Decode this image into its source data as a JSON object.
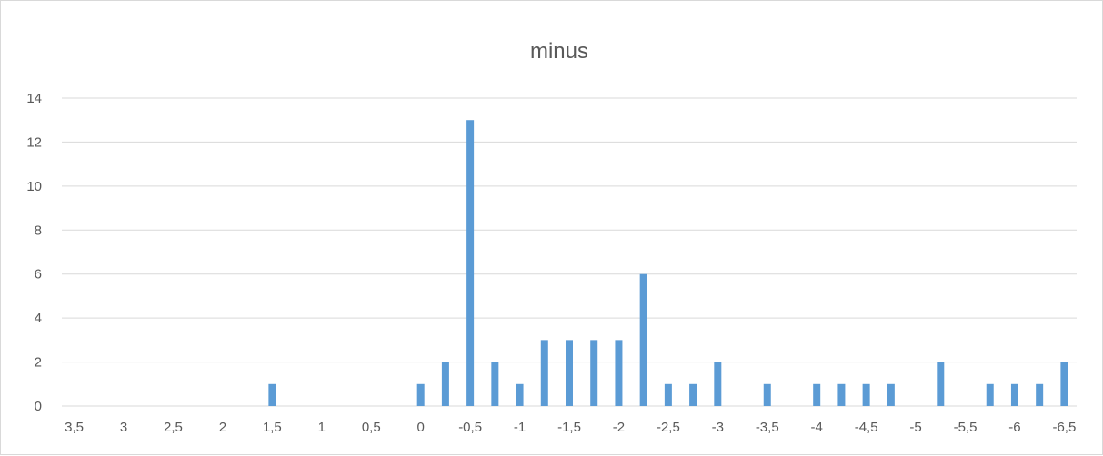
{
  "chart_data": {
    "type": "bar",
    "title": "minus",
    "xlabel": "",
    "ylabel": "",
    "categories": [
      "3,5",
      "3,25",
      "3",
      "2,75",
      "2,5",
      "2,25",
      "2",
      "1,75",
      "1,5",
      "1,25",
      "1",
      "0,75",
      "0,5",
      "0,25",
      "0",
      "-0,25",
      "-0,5",
      "-0,75",
      "-1",
      "-1,25",
      "-1,5",
      "-1,75",
      "-2",
      "-2,25",
      "-2,5",
      "-2,75",
      "-3",
      "-3,25",
      "-3,5",
      "-3,75",
      "-4",
      "-4,25",
      "-4,5",
      "-4,75",
      "-5",
      "-5,25",
      "-5,5",
      "-5,75",
      "-6",
      "-6,25",
      "-6,5"
    ],
    "x_tick_labels": [
      "3,5",
      "3",
      "2,5",
      "2",
      "1,5",
      "1",
      "0,5",
      "0",
      "-0,5",
      "-1",
      "-1,5",
      "-2",
      "-2,5",
      "-3",
      "-3,5",
      "-4",
      "-4,5",
      "-5",
      "-5,5",
      "-6",
      "-6,5"
    ],
    "values": [
      0,
      0,
      0,
      0,
      0,
      0,
      0,
      0,
      1,
      0,
      0,
      0,
      0,
      0,
      1,
      2,
      13,
      2,
      1,
      3,
      3,
      3,
      3,
      6,
      1,
      1,
      2,
      0,
      1,
      0,
      1,
      1,
      1,
      1,
      0,
      2,
      0,
      1,
      1,
      1,
      2
    ],
    "y_ticks": [
      0,
      2,
      4,
      6,
      8,
      10,
      12,
      14
    ],
    "ylim": [
      0,
      14
    ],
    "grid": true,
    "bar_color": "#5b9bd5"
  }
}
